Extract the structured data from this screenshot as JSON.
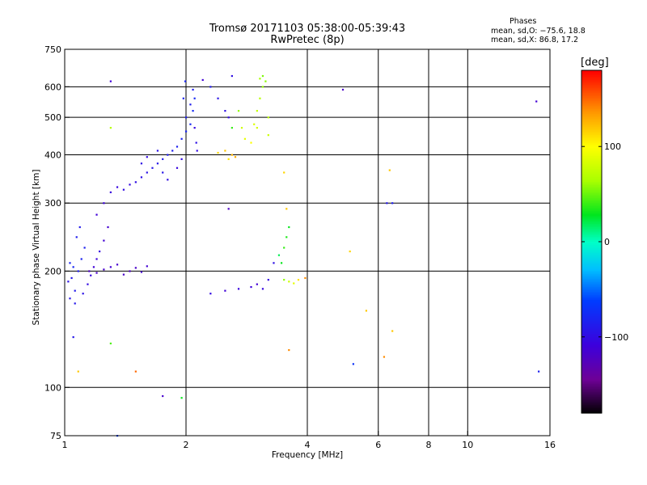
{
  "title_line1": "Tromsø 20171103 05:38:00-05:39:43",
  "title_line2": "RwPretec (8p)",
  "phases": {
    "heading": "Phases",
    "o_line": "mean, sd,O: −75.6, 18.8",
    "x_line": "mean, sd,X:  86.8, 17.2"
  },
  "colorbar": {
    "unit": "[deg]",
    "ticks": [
      "100",
      "0",
      "−100"
    ],
    "tick_values": [
      100,
      0,
      -100
    ],
    "range": [
      -180,
      180
    ]
  },
  "chart_data": {
    "type": "scatter",
    "xlabel": "Frequency [MHz]",
    "ylabel": "Stationary phase Virtual Height [km]",
    "xscale": "log",
    "yscale": "log",
    "xlim": [
      1,
      16
    ],
    "ylim": [
      75,
      750
    ],
    "x_ticks": [
      1,
      2,
      4,
      6,
      8,
      10,
      16
    ],
    "x_tick_labels": [
      "1",
      "2",
      "4",
      "6",
      "8",
      "10",
      "16"
    ],
    "y_ticks": [
      75,
      100,
      200,
      300,
      400,
      500,
      600,
      750
    ],
    "y_tick_labels": [
      "75",
      "100",
      "200",
      "300",
      "400",
      "500",
      "600",
      "750"
    ],
    "grid": true,
    "series": [
      {
        "color_value": "phase [deg]",
        "points": [
          [
            1.02,
            188,
            -95
          ],
          [
            1.04,
            192,
            -90
          ],
          [
            1.06,
            178,
            -88
          ],
          [
            1.03,
            210,
            -80
          ],
          [
            1.05,
            205,
            -78
          ],
          [
            1.08,
            200,
            -85
          ],
          [
            1.1,
            215,
            -82
          ],
          [
            1.12,
            230,
            -84
          ],
          [
            1.07,
            245,
            -86
          ],
          [
            1.09,
            260,
            -88
          ],
          [
            1.03,
            170,
            -92
          ],
          [
            1.06,
            165,
            -90
          ],
          [
            1.11,
            175,
            -95
          ],
          [
            1.14,
            185,
            -100
          ],
          [
            1.16,
            195,
            -105
          ],
          [
            1.18,
            205,
            -110
          ],
          [
            1.2,
            215,
            -108
          ],
          [
            1.22,
            225,
            -104
          ],
          [
            1.25,
            240,
            -112
          ],
          [
            1.28,
            260,
            -114
          ],
          [
            1.15,
            200,
            -120
          ],
          [
            1.2,
            198,
            -118
          ],
          [
            1.25,
            202,
            -116
          ],
          [
            1.3,
            205,
            -112
          ],
          [
            1.35,
            208,
            -115
          ],
          [
            1.4,
            196,
            -118
          ],
          [
            1.45,
            200,
            -120
          ],
          [
            1.5,
            204,
            -117
          ],
          [
            1.55,
            199,
            -114
          ],
          [
            1.6,
            206,
            -112
          ],
          [
            1.2,
            280,
            -110
          ],
          [
            1.25,
            300,
            -108
          ],
          [
            1.3,
            320,
            -106
          ],
          [
            1.35,
            330,
            -104
          ],
          [
            1.4,
            325,
            -100
          ],
          [
            1.45,
            335,
            -102
          ],
          [
            1.5,
            340,
            -98
          ],
          [
            1.55,
            350,
            -96
          ],
          [
            1.6,
            360,
            -94
          ],
          [
            1.65,
            370,
            -92
          ],
          [
            1.7,
            380,
            -90
          ],
          [
            1.75,
            390,
            -88
          ],
          [
            1.8,
            400,
            -86
          ],
          [
            1.85,
            410,
            -85
          ],
          [
            1.9,
            420,
            -84
          ],
          [
            1.95,
            440,
            -82
          ],
          [
            2.0,
            460,
            -80
          ],
          [
            2.05,
            480,
            -78
          ],
          [
            2.08,
            520,
            -76
          ],
          [
            2.1,
            560,
            -78
          ],
          [
            1.55,
            380,
            -96
          ],
          [
            1.6,
            395,
            -100
          ],
          [
            1.7,
            410,
            -95
          ],
          [
            1.75,
            360,
            -92
          ],
          [
            1.8,
            345,
            -98
          ],
          [
            1.9,
            370,
            -104
          ],
          [
            1.95,
            390,
            -100
          ],
          [
            2.0,
            500,
            -84
          ],
          [
            1.97,
            560,
            -82
          ],
          [
            1.99,
            620,
            -80
          ],
          [
            2.12,
            430,
            -96
          ],
          [
            2.1,
            470,
            -104
          ],
          [
            2.13,
            410,
            -100
          ],
          [
            2.08,
            590,
            -85
          ],
          [
            2.05,
            540,
            -86
          ],
          [
            2.3,
            600,
            -88
          ],
          [
            2.4,
            560,
            -94
          ],
          [
            2.5,
            520,
            -96
          ],
          [
            2.6,
            640,
            -98
          ],
          [
            2.55,
            500,
            -100
          ],
          [
            2.6,
            470,
            40
          ],
          [
            2.7,
            520,
            60
          ],
          [
            2.75,
            470,
            80
          ],
          [
            2.8,
            440,
            90
          ],
          [
            2.9,
            430,
            100
          ],
          [
            2.95,
            480,
            85
          ],
          [
            3.0,
            520,
            75
          ],
          [
            3.05,
            560,
            70
          ],
          [
            3.1,
            600,
            60
          ],
          [
            3.05,
            630,
            65
          ],
          [
            2.5,
            410,
            120
          ],
          [
            2.6,
            400,
            125
          ],
          [
            2.55,
            390,
            110
          ],
          [
            2.4,
            405,
            115
          ],
          [
            2.65,
            395,
            130
          ],
          [
            3.1,
            640,
            55
          ],
          [
            3.15,
            620,
            58
          ],
          [
            3.2,
            500,
            72
          ],
          [
            3.2,
            450,
            78
          ],
          [
            3.0,
            470,
            82
          ],
          [
            2.3,
            175,
            -100
          ],
          [
            2.5,
            178,
            -110
          ],
          [
            2.7,
            180,
            -105
          ],
          [
            2.9,
            182,
            -108
          ],
          [
            3.0,
            185,
            -112
          ],
          [
            3.1,
            180,
            -104
          ],
          [
            3.2,
            190,
            -100
          ],
          [
            3.3,
            210,
            -96
          ],
          [
            3.4,
            220,
            20
          ],
          [
            3.45,
            210,
            30
          ],
          [
            3.5,
            190,
            60
          ],
          [
            3.6,
            188,
            80
          ],
          [
            3.7,
            186,
            90
          ],
          [
            3.8,
            190,
            110
          ],
          [
            3.95,
            192,
            140
          ],
          [
            3.5,
            230,
            40
          ],
          [
            3.55,
            245,
            35
          ],
          [
            3.6,
            260,
            30
          ],
          [
            3.55,
            290,
            120
          ],
          [
            3.5,
            360,
            115
          ],
          [
            1.3,
            620,
            -110
          ],
          [
            1.3,
            470,
            70
          ],
          [
            1.3,
            130,
            45
          ],
          [
            1.08,
            110,
            120
          ],
          [
            1.5,
            110,
            150
          ],
          [
            1.35,
            75,
            -60
          ],
          [
            1.75,
            95,
            -115
          ],
          [
            1.95,
            94,
            30
          ],
          [
            2.55,
            290,
            -120
          ],
          [
            2.2,
            625,
            -110
          ],
          [
            3.6,
            125,
            140
          ],
          [
            4.9,
            590,
            -118
          ],
          [
            5.1,
            225,
            115
          ],
          [
            5.2,
            115,
            -70
          ],
          [
            5.6,
            158,
            120
          ],
          [
            6.2,
            120,
            140
          ],
          [
            6.4,
            365,
            120
          ],
          [
            6.5,
            140,
            120
          ],
          [
            6.3,
            300,
            -90
          ],
          [
            6.5,
            300,
            -85
          ],
          [
            14.8,
            550,
            -112
          ],
          [
            15.0,
            110,
            -84
          ],
          [
            1.05,
            135,
            -90
          ]
        ]
      }
    ]
  }
}
